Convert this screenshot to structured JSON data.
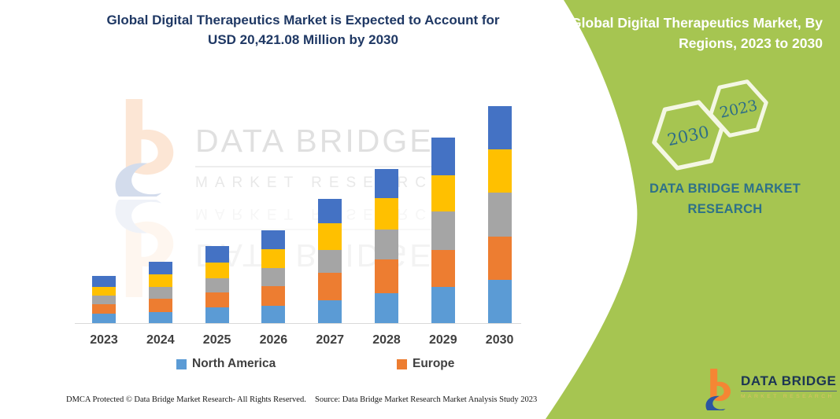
{
  "left_panel": {
    "title_line1": "Global Digital Therapeutics Market is Expected to Account for",
    "title_line2": "USD 20,421.08 Million by 2030",
    "footer_left": "DMCA Protected © Data Bridge Market Research-  All Rights Reserved.",
    "footer_right": "Source: Data Bridge Market Research  Market Analysis Study 2023"
  },
  "watermark": {
    "brand": "DATA BRIDGE",
    "sub": "MARKET RESEARCH"
  },
  "chart_data": {
    "type": "bar",
    "stacked": true,
    "title": "Global Digital Therapeutics Market, By Regions, 2023 to 2030",
    "units": "USD Million",
    "categories": [
      "2023",
      "2024",
      "2025",
      "2026",
      "2027",
      "2028",
      "2029",
      "2030"
    ],
    "series": [
      {
        "name": "North America",
        "color": "#5B9BD5",
        "values": [
          925,
          1050,
          1477,
          1662,
          2157,
          2822,
          3383,
          4048
        ]
      },
      {
        "name": "Europe",
        "color": "#ED7D31",
        "values": [
          864,
          1278,
          1403,
          1847,
          2585,
          3198,
          3501,
          4062
        ]
      },
      {
        "name": "",
        "color": "#A5A5A5",
        "values": [
          812,
          1108,
          1352,
          1677,
          2164,
          2785,
          3641,
          4188
        ]
      },
      {
        "name": "",
        "color": "#FFC000",
        "values": [
          783,
          1182,
          1477,
          1773,
          2460,
          2954,
          3375,
          4011
        ]
      },
      {
        "name": "",
        "color": "#4472C4",
        "values": [
          1034,
          1160,
          1551,
          1773,
          2319,
          2755,
          3567,
          4112
        ]
      }
    ],
    "totals": [
      4418,
      5778,
      7260,
      8732,
      11685,
      14514,
      17467,
      20421.08
    ],
    "legend_visible": [
      "North America",
      "Europe"
    ],
    "legend_position": "bottom",
    "grid": false,
    "ylim": [
      0,
      21000
    ],
    "xlabel": "",
    "ylabel": ""
  },
  "right_panel": {
    "bg": "#A6C551",
    "title_line1": "Global Digital Therapeutics Market, By",
    "title_line2": "Regions, 2023 to 2030",
    "hexagons": [
      {
        "label": "2030"
      },
      {
        "label": "2023"
      }
    ],
    "brand_line1": "DATA BRIDGE MARKET",
    "brand_line2": "RESEARCH",
    "logo": {
      "name": "DATA BRIDGE",
      "sub": "MARKET RESEARCH"
    }
  }
}
